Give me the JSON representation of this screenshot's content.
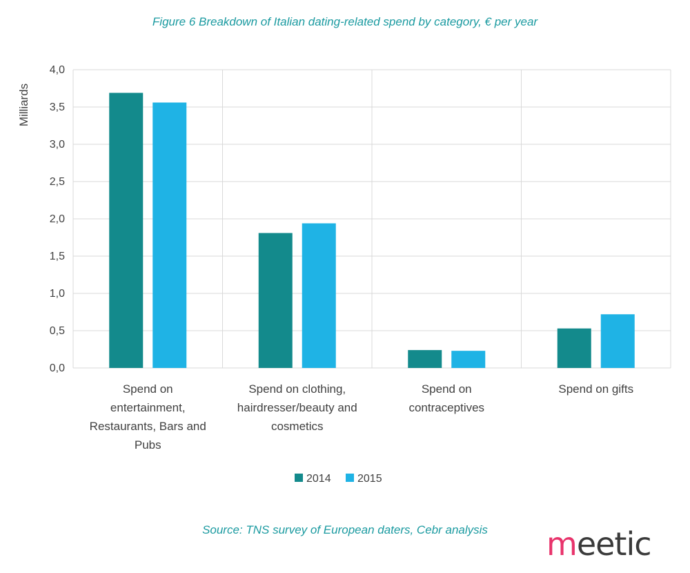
{
  "figure_title": "Figure 6 Breakdown of Italian dating-related spend by category, € per year",
  "source": "Source: TNS survey of European daters, Cebr analysis",
  "logo": {
    "brand_m": "m",
    "brand_rest": "eetic"
  },
  "colors": {
    "s2014": "#138a8c",
    "s2015": "#1fb3e5",
    "grid": "#d9d9d9",
    "title": "#1a9aa0"
  },
  "chart_data": {
    "type": "bar",
    "title": "Figure 6 Breakdown of Italian dating-related spend by category, € per year",
    "ylabel": "Milliards",
    "xlabel": "",
    "ylim": [
      0,
      4
    ],
    "yticks": [
      "0,0",
      "0,5",
      "1,0",
      "1,5",
      "2,0",
      "2,5",
      "3,0",
      "3,5",
      "4,0"
    ],
    "categories": [
      [
        "Spend on",
        "entertainment,",
        "Restaurants, Bars and",
        "Pubs"
      ],
      [
        "Spend on clothing,",
        "hairdresser/beauty and",
        "cosmetics"
      ],
      [
        "Spend on",
        "contraceptives"
      ],
      [
        "Spend on gifts"
      ]
    ],
    "series": [
      {
        "name": "2014",
        "values": [
          3.69,
          1.81,
          0.24,
          0.53
        ]
      },
      {
        "name": "2015",
        "values": [
          3.56,
          1.94,
          0.23,
          0.72
        ]
      }
    ],
    "legend": "bottom-center",
    "grid": true
  }
}
